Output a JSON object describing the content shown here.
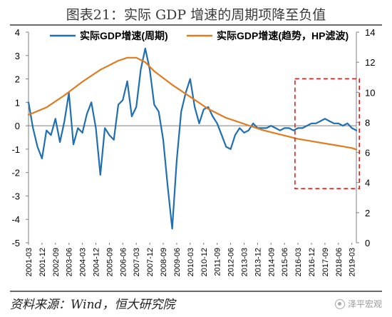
{
  "header": {
    "title": "图表21：实际 GDP 增速的周期项降至负值"
  },
  "footer": {
    "source": "资料来源：Wind，恒大研究院",
    "watermark": "泽平宏观"
  },
  "chart_data": {
    "type": "line",
    "legend_position": "top",
    "grid": false,
    "xlabel": "",
    "ylabel": "",
    "ylim": [
      -5,
      4
    ],
    "y2lim": [
      0,
      14
    ],
    "y_ticks": [
      -5,
      -4,
      -3,
      -2,
      -1,
      0,
      1,
      2,
      3,
      4
    ],
    "y2_ticks": [
      0,
      2,
      4,
      6,
      8,
      10,
      12,
      14
    ],
    "x_start": "2001-03",
    "x_end": "2019-06",
    "x_tick_labels": [
      "2001-03",
      "2001-12",
      "2002-09",
      "2003-06",
      "2004-03",
      "2004-12",
      "2005-09",
      "2006-06",
      "2007-03",
      "2007-12",
      "2008-09",
      "2009-06",
      "2010-03",
      "2010-12",
      "2011-09",
      "2012-06",
      "2013-03",
      "2013-12",
      "2014-09",
      "2015-06",
      "2016-03",
      "2016-12",
      "2017-09",
      "2018-06",
      "2019-03"
    ],
    "series": [
      {
        "name": "实际GDP增速(周期)",
        "axis": "left",
        "color": "#1f6fb2",
        "points": [
          [
            "2001-03",
            1.0
          ],
          [
            "2001-06",
            -0.1
          ],
          [
            "2001-09",
            -0.9
          ],
          [
            "2001-12",
            -1.4
          ],
          [
            "2002-03",
            -0.2
          ],
          [
            "2002-06",
            -0.4
          ],
          [
            "2002-09",
            0.3
          ],
          [
            "2002-12",
            -0.7
          ],
          [
            "2003-03",
            0.2
          ],
          [
            "2003-06",
            1.4
          ],
          [
            "2003-09",
            -0.8
          ],
          [
            "2003-12",
            -0.1
          ],
          [
            "2004-03",
            -0.3
          ],
          [
            "2004-06",
            0.5
          ],
          [
            "2004-09",
            1.0
          ],
          [
            "2004-12",
            -0.1
          ],
          [
            "2005-03",
            -2.1
          ],
          [
            "2005-06",
            -0.1
          ],
          [
            "2005-09",
            -0.4
          ],
          [
            "2005-12",
            -0.6
          ],
          [
            "2006-03",
            0.9
          ],
          [
            "2006-06",
            1.1
          ],
          [
            "2006-09",
            1.9
          ],
          [
            "2006-12",
            0.4
          ],
          [
            "2007-03",
            0.8
          ],
          [
            "2007-06",
            2.4
          ],
          [
            "2007-09",
            3.3
          ],
          [
            "2007-12",
            2.4
          ],
          [
            "2008-03",
            0.9
          ],
          [
            "2008-06",
            0.6
          ],
          [
            "2008-09",
            -0.6
          ],
          [
            "2008-12",
            -2.6
          ],
          [
            "2009-03",
            -4.4
          ],
          [
            "2009-06",
            -1.5
          ],
          [
            "2009-09",
            0.6
          ],
          [
            "2009-12",
            1.4
          ],
          [
            "2010-03",
            2.0
          ],
          [
            "2010-06",
            0.8
          ],
          [
            "2010-09",
            0.1
          ],
          [
            "2010-12",
            0.7
          ],
          [
            "2011-03",
            0.8
          ],
          [
            "2011-06",
            0.4
          ],
          [
            "2011-09",
            0.1
          ],
          [
            "2011-12",
            -0.4
          ],
          [
            "2012-03",
            -0.9
          ],
          [
            "2012-06",
            -1.0
          ],
          [
            "2012-09",
            -0.4
          ],
          [
            "2012-12",
            -0.1
          ],
          [
            "2013-03",
            -0.3
          ],
          [
            "2013-06",
            -0.2
          ],
          [
            "2013-09",
            0.1
          ],
          [
            "2013-12",
            -0.1
          ],
          [
            "2014-03",
            -0.1
          ],
          [
            "2014-06",
            -0.1
          ],
          [
            "2014-09",
            0.0
          ],
          [
            "2014-12",
            -0.1
          ],
          [
            "2015-03",
            -0.2
          ],
          [
            "2015-06",
            -0.1
          ],
          [
            "2015-09",
            -0.1
          ],
          [
            "2015-12",
            -0.2
          ],
          [
            "2016-03",
            -0.1
          ],
          [
            "2016-06",
            -0.1
          ],
          [
            "2016-09",
            0.0
          ],
          [
            "2016-12",
            0.1
          ],
          [
            "2017-03",
            0.1
          ],
          [
            "2017-06",
            0.2
          ],
          [
            "2017-09",
            0.3
          ],
          [
            "2017-12",
            0.2
          ],
          [
            "2018-03",
            0.1
          ],
          [
            "2018-06",
            0.1
          ],
          [
            "2018-09",
            0.0
          ],
          [
            "2018-12",
            0.1
          ],
          [
            "2019-03",
            -0.1
          ],
          [
            "2019-06",
            -0.2
          ]
        ]
      },
      {
        "name": "实际GDP增速(趋势，HP滤波)",
        "axis": "right",
        "color": "#e07b1f",
        "points": [
          [
            "2001-03",
            8.5
          ],
          [
            "2002-03",
            9.0
          ],
          [
            "2003-03",
            9.8
          ],
          [
            "2004-03",
            10.7
          ],
          [
            "2005-03",
            11.5
          ],
          [
            "2006-03",
            12.1
          ],
          [
            "2006-09",
            12.3
          ],
          [
            "2007-03",
            12.3
          ],
          [
            "2007-09",
            12.0
          ],
          [
            "2008-03",
            11.4
          ],
          [
            "2009-03",
            10.5
          ],
          [
            "2010-03",
            9.7
          ],
          [
            "2011-03",
            8.9
          ],
          [
            "2012-03",
            8.3
          ],
          [
            "2013-03",
            7.9
          ],
          [
            "2014-03",
            7.5
          ],
          [
            "2015-03",
            7.2
          ],
          [
            "2016-03",
            6.9
          ],
          [
            "2017-03",
            6.7
          ],
          [
            "2018-03",
            6.5
          ],
          [
            "2019-03",
            6.3
          ],
          [
            "2019-06",
            6.2
          ]
        ]
      }
    ],
    "annotation": {
      "type": "dashed-rect",
      "color": "#e02020",
      "x_from": "2016-01",
      "x_to": "2019-08",
      "y2_from": 3.6,
      "y2_to": 10.9
    }
  }
}
